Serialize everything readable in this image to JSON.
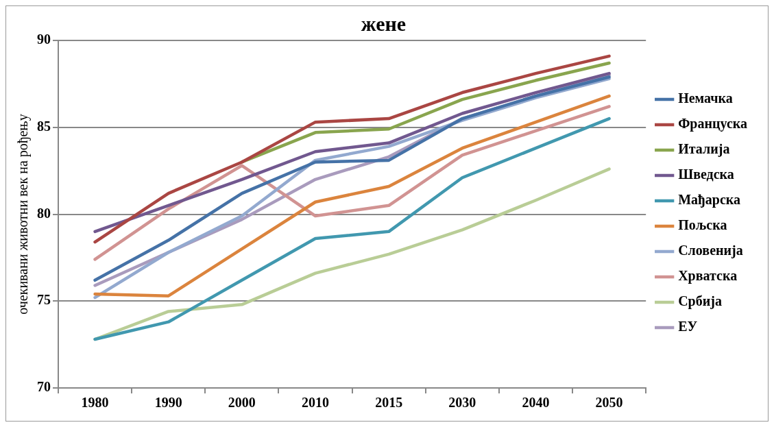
{
  "chart_data": {
    "type": "line",
    "title": "жене",
    "ylabel": "очекивани животни век на рођењу",
    "categories": [
      "1980",
      "1990",
      "2000",
      "2010",
      "2015",
      "2030",
      "2040",
      "2050"
    ],
    "series": [
      {
        "name": "Немачка",
        "color": "#4572a7",
        "values": [
          76.2,
          78.5,
          81.2,
          83.0,
          83.1,
          85.5,
          86.8,
          87.9
        ]
      },
      {
        "name": "Француска",
        "color": "#aa4643",
        "values": [
          78.4,
          81.2,
          83.0,
          85.3,
          85.5,
          87.0,
          88.1,
          89.1
        ]
      },
      {
        "name": "Италија",
        "color": "#89a54e",
        "values": [
          null,
          null,
          83.0,
          84.7,
          84.9,
          86.6,
          87.7,
          88.7
        ]
      },
      {
        "name": "Шведска",
        "color": "#71588f",
        "values": [
          79.0,
          80.5,
          82.0,
          83.6,
          84.1,
          85.8,
          87.0,
          88.1
        ]
      },
      {
        "name": "Мађарска",
        "color": "#4198af",
        "values": [
          72.8,
          73.8,
          76.2,
          78.6,
          79.0,
          82.1,
          83.8,
          85.5
        ]
      },
      {
        "name": "Пољска",
        "color": "#db843d",
        "values": [
          75.4,
          75.3,
          78.0,
          80.7,
          81.6,
          83.8,
          85.3,
          86.8
        ]
      },
      {
        "name": "Словенија",
        "color": "#93a9cf",
        "values": [
          75.2,
          77.8,
          79.9,
          83.1,
          83.9,
          85.4,
          86.7,
          87.8
        ]
      },
      {
        "name": "Хрватска",
        "color": "#d19392",
        "values": [
          77.4,
          80.3,
          82.8,
          79.9,
          80.5,
          83.4,
          84.8,
          86.2
        ]
      },
      {
        "name": "Србија",
        "color": "#b9cd96",
        "values": [
          72.8,
          74.4,
          74.8,
          76.6,
          77.7,
          79.1,
          80.8,
          82.6
        ]
      },
      {
        "name": "ЕУ",
        "color": "#a99bbd",
        "values": [
          75.9,
          77.8,
          79.7,
          82.0,
          83.3,
          85.5,
          86.8,
          88.0
        ]
      }
    ],
    "ylim": [
      70,
      90
    ],
    "yticks": [
      70,
      75,
      80,
      85,
      90
    ],
    "grid": "y",
    "legend": "right",
    "marker": "none",
    "line_style": "solid"
  }
}
